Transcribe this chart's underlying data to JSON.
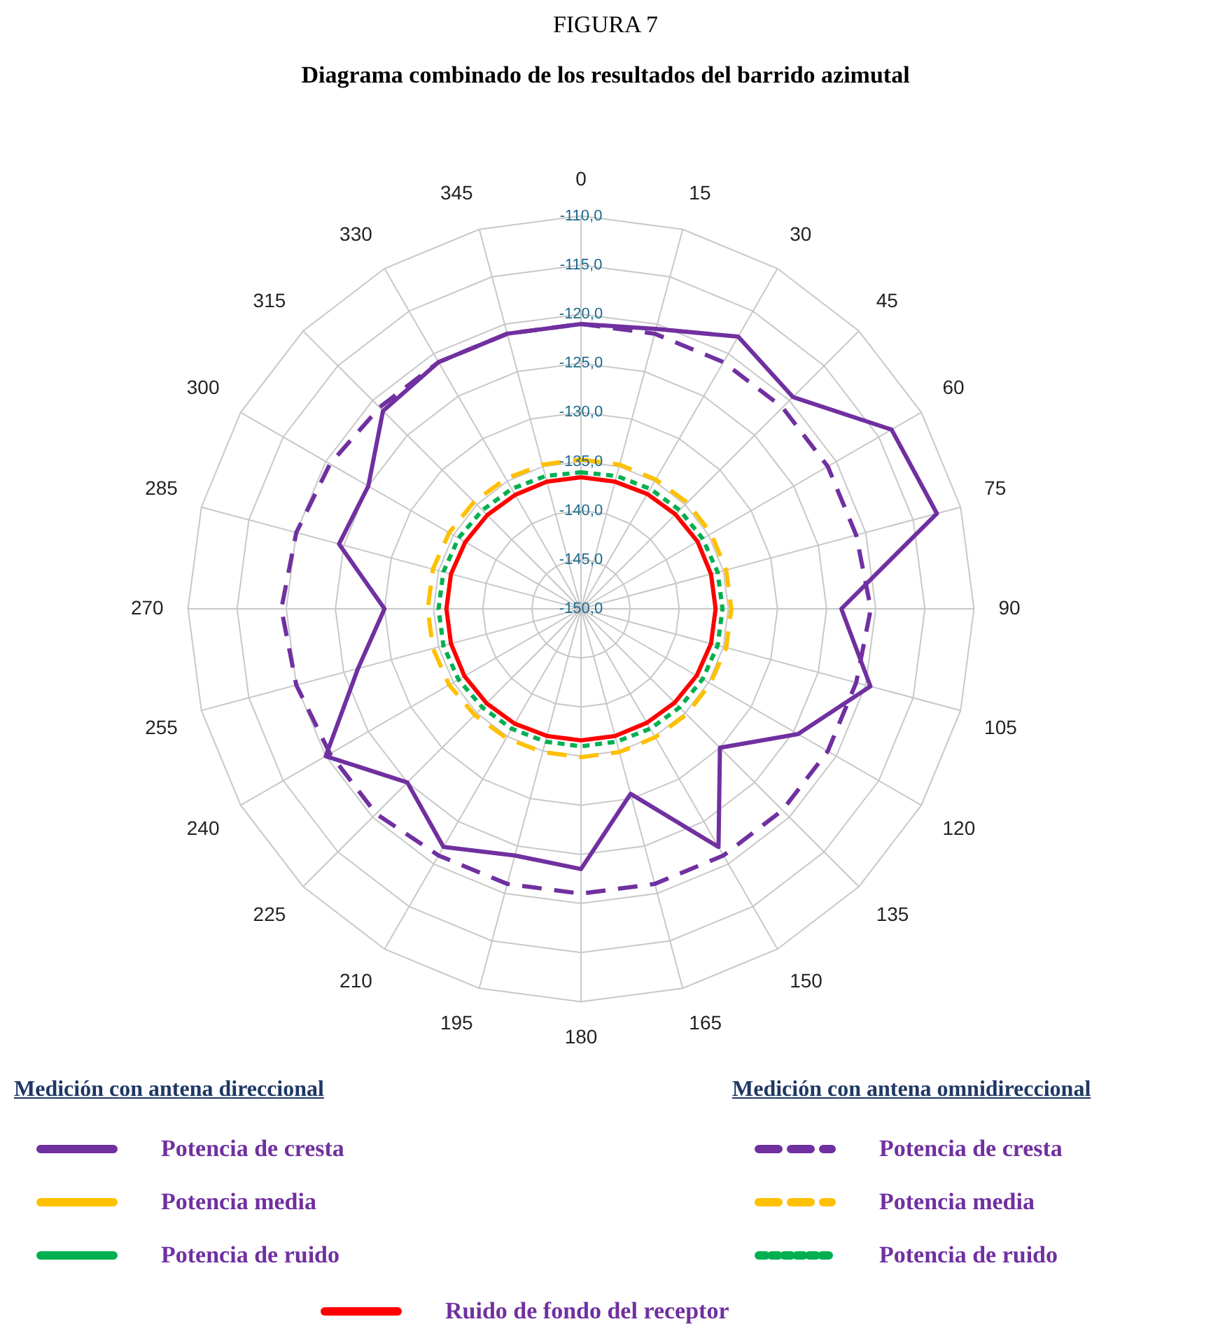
{
  "chart_data": {
    "type": "radar",
    "title": "FIGURA 7",
    "subtitle": "Diagrama combinado de los resultados del barrido azimutal",
    "categories": [
      "0",
      "15",
      "30",
      "45",
      "60",
      "75",
      "90",
      "105",
      "120",
      "135",
      "150",
      "165",
      "180",
      "195",
      "210",
      "225",
      "240",
      "255",
      "270",
      "285",
      "300",
      "315",
      "330",
      "345"
    ],
    "ylim": [
      -150,
      -110
    ],
    "yticks": [
      {
        "value": -150,
        "label": "-150,0"
      },
      {
        "value": -145,
        "label": "-145,0"
      },
      {
        "value": -140,
        "label": "-140,0"
      },
      {
        "value": -135,
        "label": "-135,0"
      },
      {
        "value": -130,
        "label": "-130,0"
      },
      {
        "value": -125,
        "label": "-125,0"
      },
      {
        "value": -120,
        "label": "-120,0"
      },
      {
        "value": -115,
        "label": "-115,0"
      },
      {
        "value": -110,
        "label": "-110,0"
      }
    ],
    "grid": true,
    "marker": "none",
    "legend": "bottom",
    "annotations": [
      "Medición con antena direccional",
      "Medición con antena omnidireccional"
    ],
    "series": [
      {
        "name": "Potencia de cresta",
        "color": "#7030a0",
        "line_style": "solid",
        "values": [
          -121,
          -120.5,
          -118,
          -119.5,
          -113.5,
          -112.5,
          -123.5,
          -119.5,
          -124.5,
          -130,
          -122,
          -130.5,
          -123.5,
          -124,
          -122,
          -125,
          -120,
          -126.5,
          -130,
          -124.5,
          -125,
          -121.5,
          -121,
          -121
        ]
      },
      {
        "name": "Potencia de cresta",
        "color": "#7030a0",
        "line_style": "dashed",
        "values": [
          -121,
          -121,
          -121,
          -121,
          -121,
          -121,
          -120.5,
          -121,
          -121,
          -121,
          -121,
          -121,
          -121,
          -121,
          -121,
          -120.5,
          -120.5,
          -120,
          -119.5,
          -120,
          -120.5,
          -121,
          -121,
          -121
        ]
      },
      {
        "name": "Potencia media",
        "color": "#ffc000",
        "line_style": "dashed",
        "values": [
          -134.8,
          -134.8,
          -134.8,
          -134.7,
          -134.7,
          -134.7,
          -134.7,
          -134.7,
          -134.8,
          -134.8,
          -134.9,
          -134.9,
          -134.9,
          -134.9,
          -134.8,
          -134.7,
          -134.5,
          -134.4,
          -134.4,
          -134.4,
          -134.5,
          -134.6,
          -134.7,
          -134.8
        ]
      },
      {
        "name": "Potencia de ruido",
        "color": "#00b050",
        "line_style": "dotted",
        "values": [
          -136.1,
          -136,
          -135.9,
          -135.8,
          -135.7,
          -135.6,
          -135.6,
          -135.6,
          -135.7,
          -135.8,
          -135.9,
          -136,
          -136,
          -136,
          -135.9,
          -135.8,
          -135.6,
          -135.5,
          -135.5,
          -135.5,
          -135.6,
          -135.8,
          -135.9,
          -136
        ]
      },
      {
        "name": "Ruido de fondo del receptor",
        "color": "#ff0000",
        "line_style": "solid",
        "values": [
          -136.6,
          -136.6,
          -136.5,
          -136.4,
          -136.3,
          -136.3,
          -136.3,
          -136.3,
          -136.4,
          -136.5,
          -136.6,
          -136.6,
          -136.6,
          -136.6,
          -136.5,
          -136.4,
          -136.3,
          -136.3,
          -136.3,
          -136.3,
          -136.4,
          -136.5,
          -136.6,
          -136.6
        ]
      },
      {
        "name": "Potencia media",
        "color": "#ffc000",
        "line_style": "solid",
        "values": [
          null,
          null,
          null,
          null,
          null,
          null,
          null,
          null,
          null,
          null,
          null,
          null,
          null,
          null,
          null,
          null,
          null,
          null,
          null,
          null,
          null,
          null,
          null,
          null
        ]
      },
      {
        "name": "Potencia de ruido",
        "color": "#00b050",
        "line_style": "solid",
        "values": [
          null,
          null,
          null,
          null,
          null,
          null,
          null,
          null,
          null,
          null,
          null,
          null,
          null,
          null,
          null,
          null,
          null,
          null,
          null,
          null,
          null,
          null,
          null,
          null
        ]
      }
    ]
  }
}
